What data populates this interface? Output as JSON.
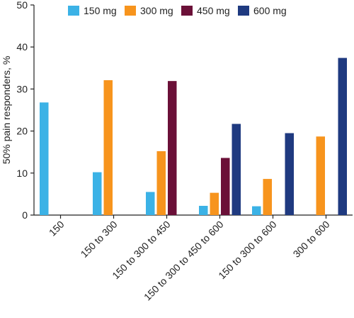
{
  "chart_data": {
    "type": "bar",
    "y_label": "50% pain responders, %",
    "categories": [
      "150",
      "150 to 300",
      "150 to 300 to 450",
      "150 to 300 to 450 to 600",
      "150 to 300 to 600",
      "300 to 600"
    ],
    "series": [
      {
        "name": "150 mg",
        "color": "#3bb2e6",
        "values": [
          26.8,
          10.2,
          5.5,
          2.2,
          2.1,
          null
        ]
      },
      {
        "name": "300 mg",
        "color": "#f7941d",
        "values": [
          null,
          32.1,
          15.2,
          5.3,
          8.6,
          18.7
        ]
      },
      {
        "name": "450 mg",
        "color": "#6b1038",
        "values": [
          null,
          null,
          31.9,
          13.6,
          null,
          null
        ]
      },
      {
        "name": "600 mg",
        "color": "#1f3a80",
        "values": [
          null,
          null,
          null,
          21.7,
          19.5,
          37.4
        ]
      }
    ],
    "ylim": [
      0,
      50
    ],
    "yticks": [
      0,
      10,
      20,
      30,
      40,
      50
    ],
    "legend": "top"
  }
}
